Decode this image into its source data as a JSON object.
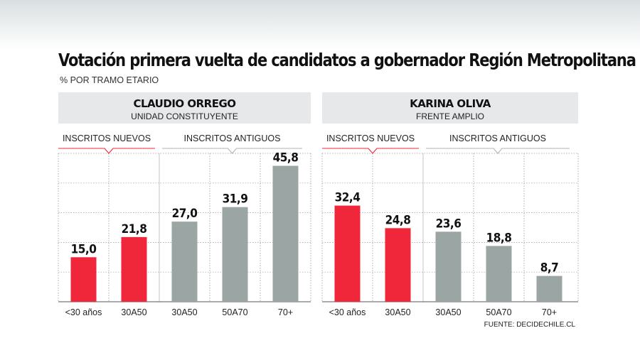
{
  "title": "Votación primera vuelta de candidatos a gobernador Región Metropolitana",
  "subtitle": "% POR TRAMO ETARIO",
  "source": "FUENTE: DECIDECHILE.CL",
  "colors": {
    "new": "#f0273a",
    "old": "#9aa5a4",
    "header_bg": "#e6e8e9"
  },
  "chart_data": [
    {
      "type": "bar",
      "title": "CLAUDIO ORREGO",
      "subtitle": "UNIDAD CONSTITUYENTE",
      "groups": [
        {
          "label": "INSCRITOS NUEVOS",
          "from": 0,
          "to": 1
        },
        {
          "label": "INSCRITOS ANTIGUOS",
          "from": 2,
          "to": 4
        }
      ],
      "categories": [
        "<30 años",
        "30A50",
        "30A50",
        "50A70",
        "70+"
      ],
      "values": [
        15.0,
        21.8,
        27.0,
        31.9,
        45.8
      ],
      "value_labels": [
        "15,0",
        "21,8",
        "27,0",
        "31,9",
        "45,8"
      ],
      "bar_groups": [
        "new",
        "new",
        "old",
        "old",
        "old"
      ],
      "ylim": [
        0,
        50
      ],
      "grid": true
    },
    {
      "type": "bar",
      "title": "KARINA OLIVA",
      "subtitle": "FRENTE AMPLIO",
      "groups": [
        {
          "label": "INSCRITOS NUEVOS",
          "from": 0,
          "to": 1
        },
        {
          "label": "INSCRITOS ANTIGUOS",
          "from": 2,
          "to": 4
        }
      ],
      "categories": [
        "<30 años",
        "30A50",
        "30A50",
        "50A70",
        "70+"
      ],
      "values": [
        32.4,
        24.8,
        23.6,
        18.8,
        8.7
      ],
      "value_labels": [
        "32,4",
        "24,8",
        "23,6",
        "18,8",
        "8,7"
      ],
      "bar_groups": [
        "new",
        "new",
        "old",
        "old",
        "old"
      ],
      "ylim": [
        0,
        50
      ],
      "grid": true
    }
  ]
}
